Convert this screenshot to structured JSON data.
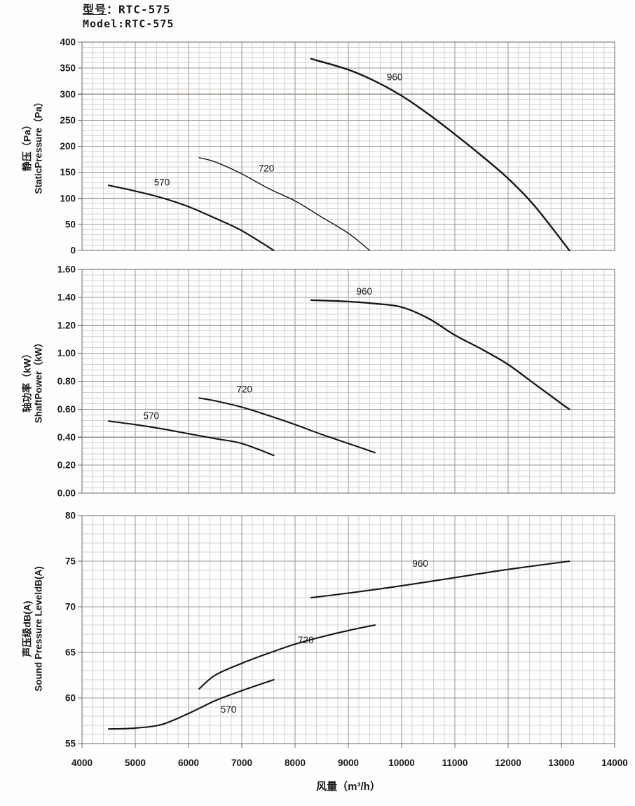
{
  "header": {
    "cn_label": "型号",
    "cn_colon": "：",
    "cn_value": "RTC-575",
    "model_line": "Model:RTC-575"
  },
  "x_axis": {
    "title": "风量（m³/h）",
    "min": 4000,
    "max": 14000,
    "major_step": 1000,
    "minor_step": 200,
    "tick_labels": [
      "4000",
      "5000",
      "6000",
      "7000",
      "8000",
      "9000",
      "10000",
      "11000",
      "12000",
      "13000",
      "14000"
    ]
  },
  "colors": {
    "curve": "#161616",
    "grid_major": "#9a948e",
    "grid_minor": "#d5d1cd",
    "border": "#6f6b66",
    "text": "#1a1a1a"
  },
  "chart_data": [
    {
      "type": "line",
      "name": "static-pressure",
      "ylabel_cn": "静压（Pa）",
      "ylabel_en": "StaticPressure（Pa）",
      "ylim": [
        0,
        400
      ],
      "y_major_step": 50,
      "y_minor_per_major": 5,
      "y_tick_labels": [
        "400",
        "350",
        "300",
        "250",
        "200",
        "150",
        "100",
        "50",
        "0"
      ],
      "xlim": [
        4000,
        14000
      ],
      "series": [
        {
          "name": "570",
          "stroke_width": 2.2,
          "label_x": 5500,
          "label_y": 130,
          "points": [
            [
              4500,
              125
            ],
            [
              5000,
              114
            ],
            [
              5500,
              101
            ],
            [
              6000,
              84
            ],
            [
              6500,
              62
            ],
            [
              7000,
              38
            ],
            [
              7600,
              0
            ]
          ]
        },
        {
          "name": "720",
          "stroke_width": 1.4,
          "label_x": 7460,
          "label_y": 157,
          "points": [
            [
              6200,
              178
            ],
            [
              6500,
              170
            ],
            [
              7000,
              147
            ],
            [
              7500,
              119
            ],
            [
              8000,
              95
            ],
            [
              8500,
              64
            ],
            [
              9000,
              33
            ],
            [
              9400,
              0
            ]
          ]
        },
        {
          "name": "960",
          "stroke_width": 2.4,
          "label_x": 9870,
          "label_y": 332,
          "points": [
            [
              8300,
              368
            ],
            [
              9000,
              347
            ],
            [
              9500,
              325
            ],
            [
              10000,
              297
            ],
            [
              10500,
              262
            ],
            [
              11000,
              223
            ],
            [
              11500,
              182
            ],
            [
              12000,
              138
            ],
            [
              12500,
              85
            ],
            [
              13150,
              0
            ]
          ]
        }
      ]
    },
    {
      "type": "line",
      "name": "shaft-power",
      "ylabel_cn": "轴功率（kW）",
      "ylabel_en": "ShaftPower（kW）",
      "ylim": [
        0,
        1.6
      ],
      "y_major_step": 0.2,
      "y_minor_per_major": 5,
      "y_tick_labels": [
        "1.60",
        "1.40",
        "1.20",
        "1.00",
        "0.80",
        "0.60",
        "0.40",
        "0.20",
        "0.00"
      ],
      "xlim": [
        4000,
        14000
      ],
      "series": [
        {
          "name": "570",
          "stroke_width": 2.1,
          "label_x": 5300,
          "label_y": 0.55,
          "points": [
            [
              4500,
              0.515
            ],
            [
              5000,
              0.49
            ],
            [
              5500,
              0.46
            ],
            [
              6000,
              0.425
            ],
            [
              6500,
              0.39
            ],
            [
              7000,
              0.355
            ],
            [
              7600,
              0.27
            ]
          ]
        },
        {
          "name": "720",
          "stroke_width": 2.1,
          "label_x": 7050,
          "label_y": 0.74,
          "points": [
            [
              6200,
              0.68
            ],
            [
              6500,
              0.66
            ],
            [
              7000,
              0.615
            ],
            [
              7500,
              0.555
            ],
            [
              8000,
              0.49
            ],
            [
              8500,
              0.42
            ],
            [
              9000,
              0.355
            ],
            [
              9500,
              0.29
            ]
          ]
        },
        {
          "name": "960",
          "stroke_width": 2.3,
          "label_x": 9300,
          "label_y": 1.44,
          "points": [
            [
              8300,
              1.38
            ],
            [
              9000,
              1.37
            ],
            [
              9500,
              1.355
            ],
            [
              10000,
              1.33
            ],
            [
              10500,
              1.25
            ],
            [
              11000,
              1.13
            ],
            [
              11500,
              1.03
            ],
            [
              12000,
              0.92
            ],
            [
              12500,
              0.78
            ],
            [
              13000,
              0.64
            ],
            [
              13150,
              0.6
            ]
          ]
        }
      ]
    },
    {
      "type": "line",
      "name": "sound-pressure-level",
      "ylabel_cn": "声压级dB(A)",
      "ylabel_en": "Sound Pressure LeveldB(A)",
      "ylim": [
        55,
        80
      ],
      "y_major_step": 5,
      "y_minor_per_major": 5,
      "y_tick_labels": [
        "80",
        "75",
        "70",
        "65",
        "60",
        "55"
      ],
      "xlim": [
        4000,
        14000
      ],
      "series": [
        {
          "name": "570",
          "stroke_width": 2.1,
          "label_x": 6750,
          "label_y": 58.7,
          "points": [
            [
              4500,
              56.6
            ],
            [
              5000,
              56.7
            ],
            [
              5500,
              57.1
            ],
            [
              6000,
              58.3
            ],
            [
              6500,
              59.7
            ],
            [
              7000,
              60.8
            ],
            [
              7600,
              62
            ]
          ]
        },
        {
          "name": "720",
          "stroke_width": 2.1,
          "label_x": 8200,
          "label_y": 66.3,
          "points": [
            [
              6200,
              61
            ],
            [
              6500,
              62.5
            ],
            [
              7000,
              63.8
            ],
            [
              7500,
              64.9
            ],
            [
              8000,
              65.9
            ],
            [
              8500,
              66.7
            ],
            [
              9000,
              67.4
            ],
            [
              9500,
              68
            ]
          ]
        },
        {
          "name": "960",
          "stroke_width": 2.1,
          "label_x": 10350,
          "label_y": 74.7,
          "points": [
            [
              8300,
              71
            ],
            [
              9000,
              71.5
            ],
            [
              10000,
              72.3
            ],
            [
              11000,
              73.2
            ],
            [
              12000,
              74.1
            ],
            [
              13150,
              75
            ]
          ]
        }
      ]
    }
  ]
}
